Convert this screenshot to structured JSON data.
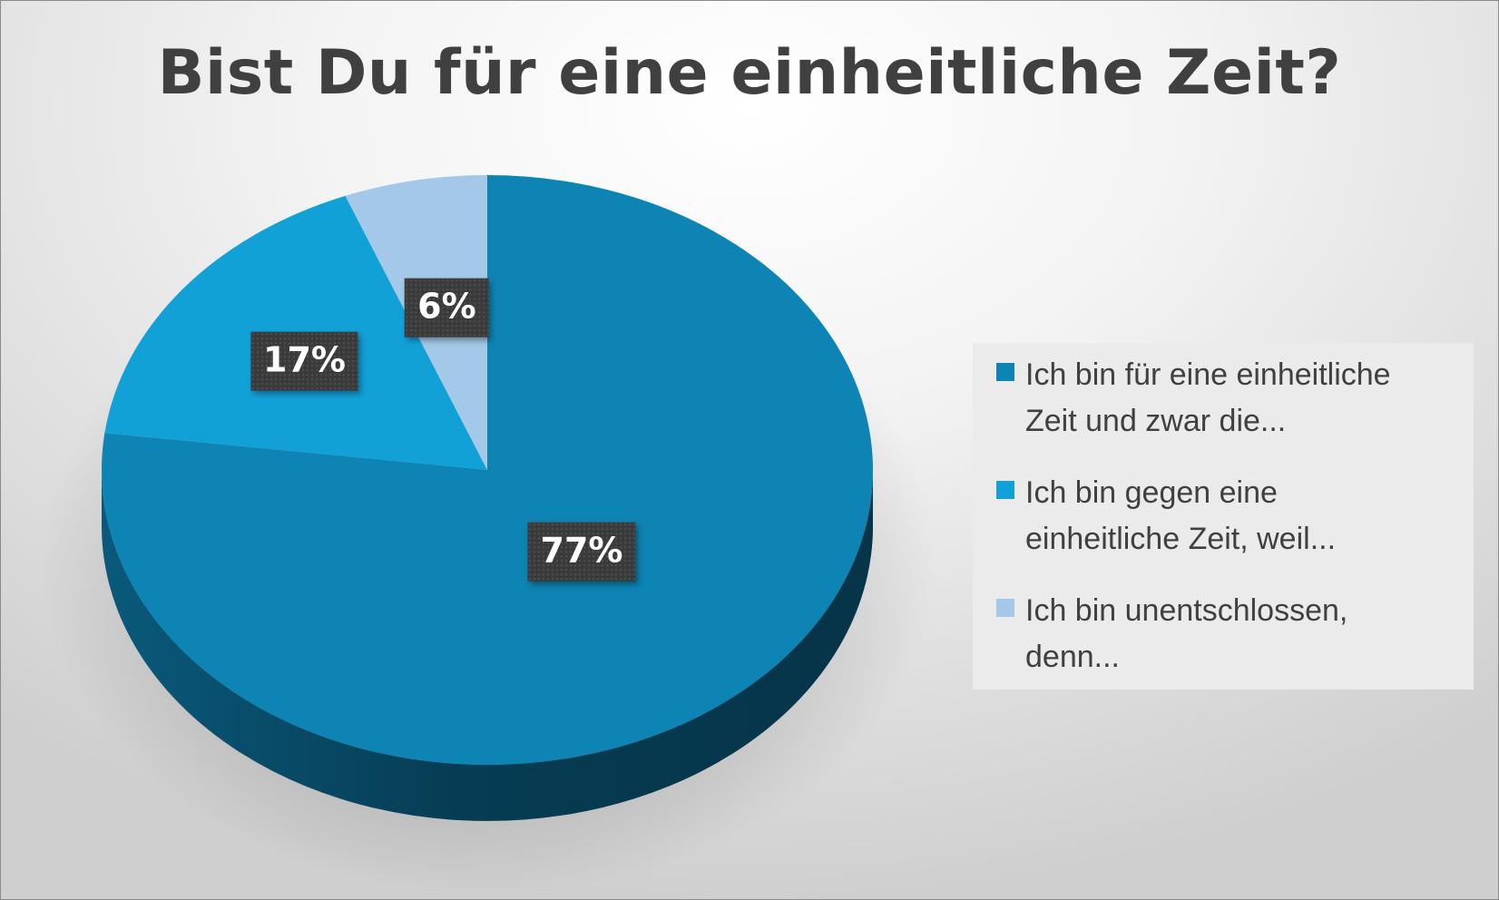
{
  "chart_data": {
    "type": "pie",
    "title": "Bist Du für eine einheitliche Zeit?",
    "categories": [
      "Ich bin für eine einheitliche Zeit und zwar die...",
      "Ich bin gegen eine einheitliche Zeit, weil...",
      "Ich bin unentschlossen, denn..."
    ],
    "values": [
      77,
      17,
      6
    ],
    "data_labels": [
      "77%",
      "17%",
      "6%"
    ],
    "colors": [
      "#0e84b4",
      "#12a1d7",
      "#a3c8e8"
    ],
    "side_colors": [
      "#0a5e82",
      "#0c76a0",
      "#7aa6c8"
    ],
    "legend_position": "right",
    "style": "3d"
  },
  "legend": {
    "items": [
      {
        "lines": [
          "Ich bin für eine einheitliche",
          "Zeit und zwar die..."
        ]
      },
      {
        "lines": [
          "Ich bin gegen eine",
          "einheitliche Zeit, weil..."
        ]
      },
      {
        "lines": [
          "Ich bin unentschlossen,",
          "denn..."
        ]
      }
    ]
  }
}
